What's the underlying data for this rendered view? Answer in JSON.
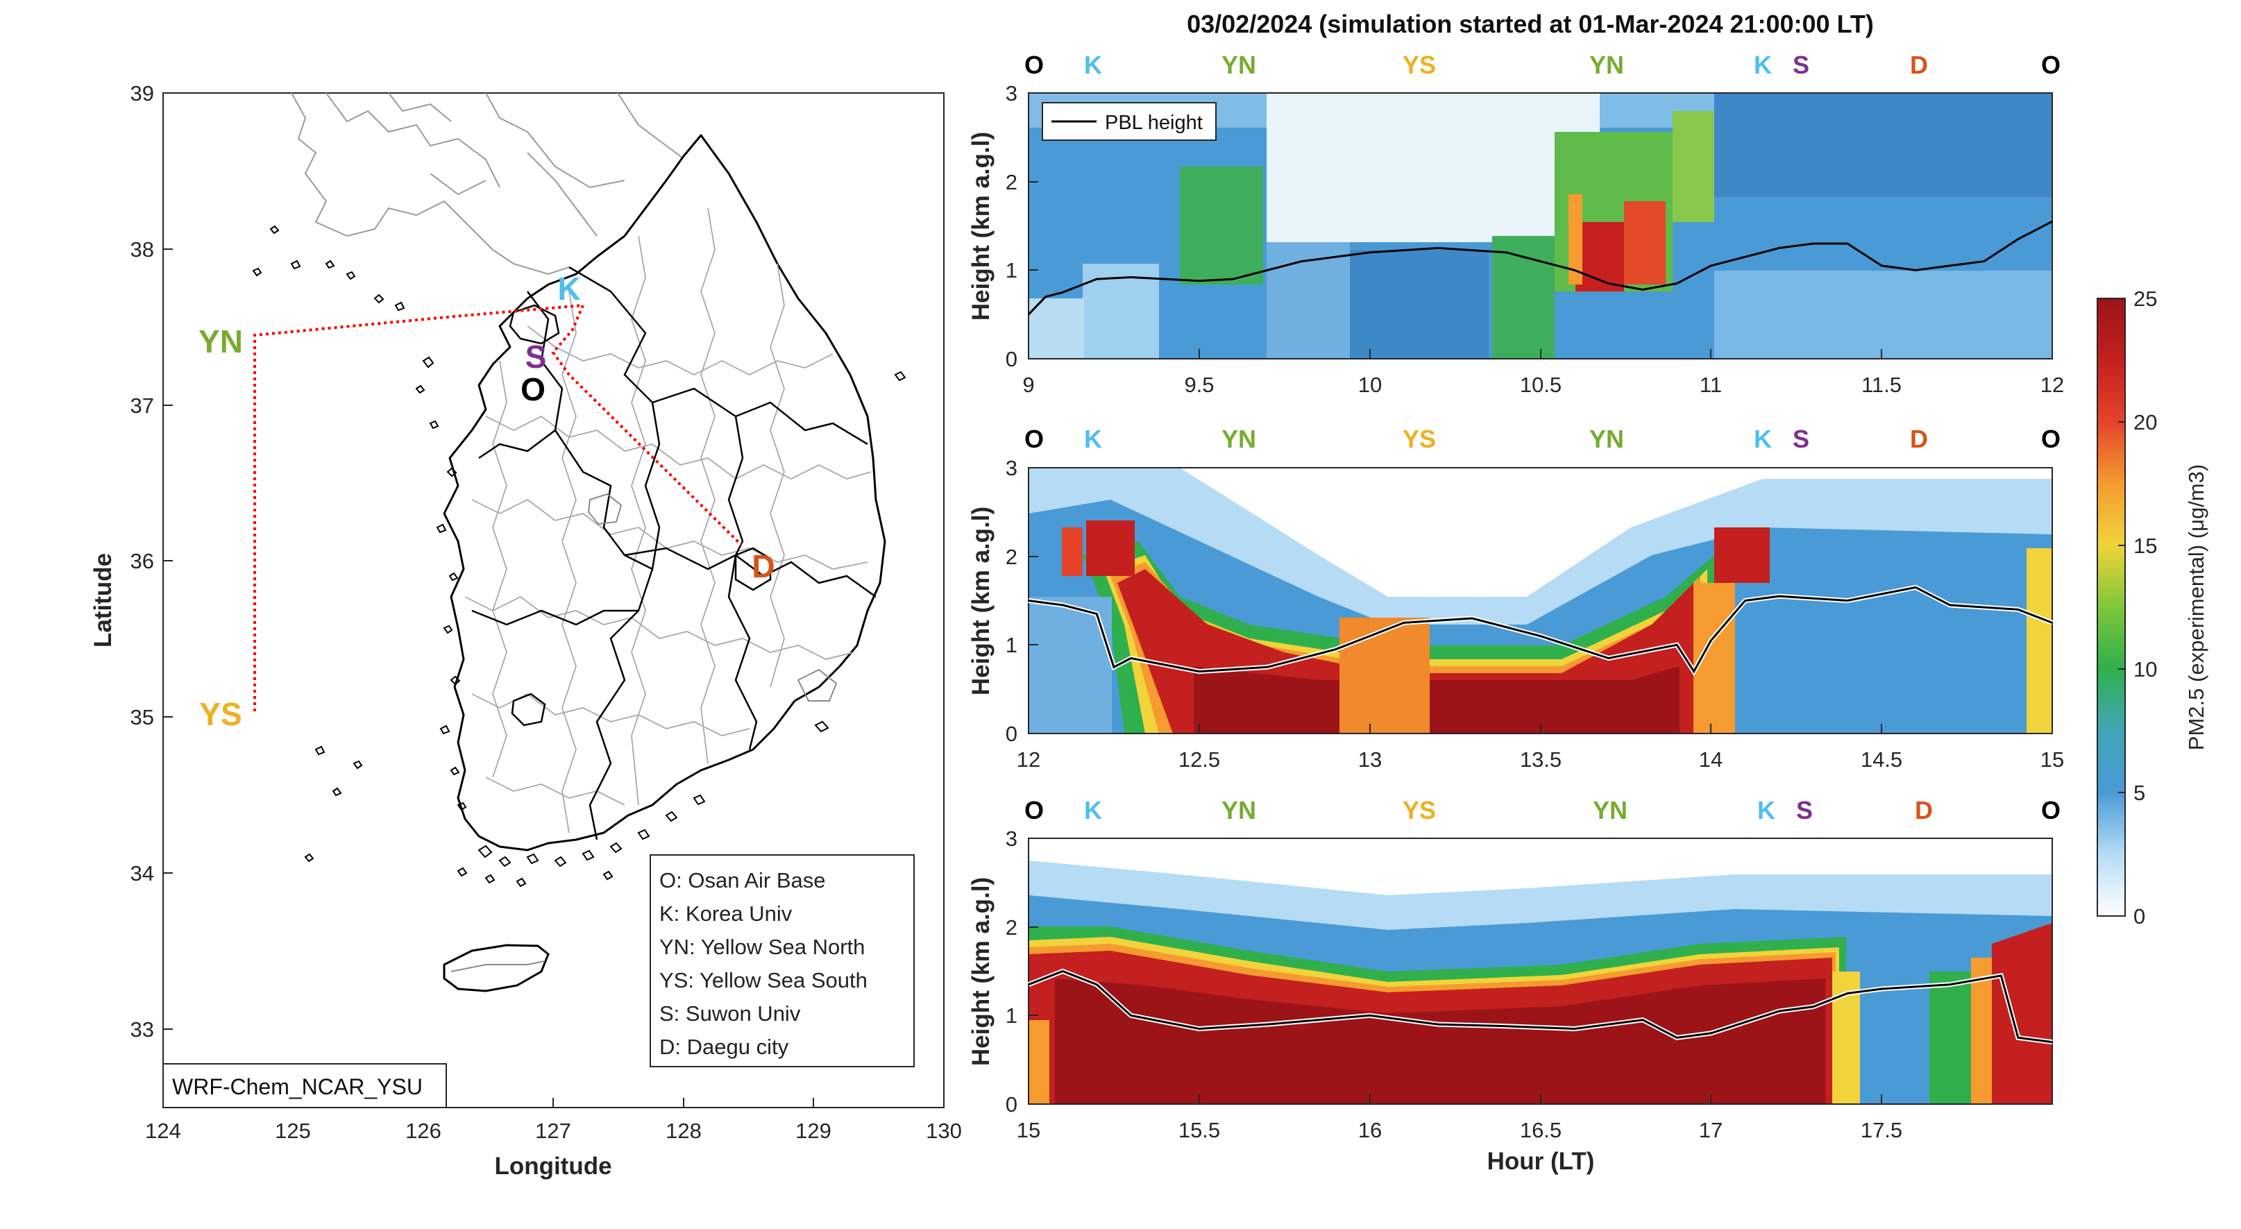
{
  "figure": {
    "title": "03/02/2024 (simulation started at 01-Mar-2024 21:00:00 LT)"
  },
  "map": {
    "xlabel": "Longitude",
    "ylabel": "Latitude",
    "xlim": [
      124,
      130
    ],
    "ylim": [
      32.5,
      39
    ],
    "xticks": [
      "124",
      "125",
      "126",
      "127",
      "128",
      "129",
      "130"
    ],
    "yticks": [
      "33",
      "34",
      "35",
      "36",
      "37",
      "38",
      "39"
    ],
    "model_label": "WRF-Chem_NCAR_YSU",
    "sites": [
      {
        "code": "O",
        "lon": 126.96,
        "lat": 37.1,
        "color": "#000000"
      },
      {
        "code": "K",
        "lon": 127.18,
        "lat": 37.64,
        "color": "#4DBEEE"
      },
      {
        "code": "YN",
        "lon": 124.75,
        "lat": 37.45,
        "color": "#77AC30"
      },
      {
        "code": "YS",
        "lon": 124.75,
        "lat": 35.05,
        "color": "#EDB120"
      },
      {
        "code": "S",
        "lon": 127.02,
        "lat": 37.3,
        "color": "#7E2F8E"
      },
      {
        "code": "D",
        "lon": 128.55,
        "lat": 36.06,
        "color": "#D95319"
      }
    ],
    "track_color": "#ff0000",
    "legend": [
      "O: Osan Air Base",
      "K: Korea Univ",
      "YN: Yellow Sea North",
      "YS: Yellow Sea South",
      "S: Suwon Univ",
      "D: Daegu city"
    ]
  },
  "chart_data": [
    {
      "type": "heatmap",
      "panel": 1,
      "xlim": [
        9,
        12
      ],
      "ylim": [
        0,
        3
      ],
      "xticks": [
        "9",
        "9.5",
        "10",
        "10.5",
        "11",
        "11.5",
        "12"
      ],
      "yticks": [
        "0",
        "1",
        "2",
        "3"
      ],
      "ylabel": "Height (km a.g.l)",
      "xlabel": "",
      "legend": [
        "PBL height"
      ],
      "site_labels": [
        "O",
        "K",
        "YN",
        "YS",
        "YN",
        "K",
        "S",
        "D",
        "O"
      ],
      "pbl_x": [
        9,
        9.05,
        9.1,
        9.2,
        9.3,
        9.5,
        9.6,
        9.8,
        10.0,
        10.2,
        10.4,
        10.6,
        10.7,
        10.8,
        10.9,
        11.0,
        11.1,
        11.2,
        11.3,
        11.4,
        11.5,
        11.6,
        11.7,
        11.8,
        11.9,
        12.0
      ],
      "pbl_y": [
        0.5,
        0.7,
        0.75,
        0.9,
        0.92,
        0.88,
        0.9,
        1.1,
        1.2,
        1.25,
        1.2,
        1.0,
        0.85,
        0.78,
        0.85,
        1.05,
        1.15,
        1.25,
        1.3,
        1.3,
        1.05,
        1.0,
        1.05,
        1.1,
        1.35,
        1.55
      ]
    },
    {
      "type": "heatmap",
      "panel": 2,
      "xlim": [
        12,
        15
      ],
      "ylim": [
        0,
        3
      ],
      "xticks": [
        "12",
        "12.5",
        "13",
        "13.5",
        "14",
        "14.5",
        "15"
      ],
      "yticks": [
        "0",
        "1",
        "2",
        "3"
      ],
      "ylabel": "Height (km a.g.l)",
      "xlabel": "",
      "site_labels": [
        "O",
        "K",
        "YN",
        "YS",
        "YN",
        "K",
        "S",
        "D",
        "O"
      ],
      "pbl_x": [
        12.0,
        12.1,
        12.2,
        12.25,
        12.3,
        12.5,
        12.7,
        12.9,
        13.0,
        13.1,
        13.3,
        13.5,
        13.7,
        13.9,
        13.95,
        14.0,
        14.1,
        14.2,
        14.4,
        14.6,
        14.7,
        14.9,
        15.0
      ],
      "pbl_y": [
        1.5,
        1.45,
        1.35,
        0.75,
        0.85,
        0.7,
        0.75,
        0.95,
        1.1,
        1.25,
        1.3,
        1.1,
        0.85,
        1.0,
        0.7,
        1.05,
        1.5,
        1.55,
        1.5,
        1.65,
        1.45,
        1.4,
        1.25
      ]
    },
    {
      "type": "heatmap",
      "panel": 3,
      "xlim": [
        15,
        18
      ],
      "ylim": [
        0,
        3
      ],
      "xticks": [
        "15",
        "15.5",
        "16",
        "16.5",
        "17",
        "17.5"
      ],
      "yticks": [
        "0",
        "1",
        "2",
        "3"
      ],
      "ylabel": "Height (km a.g.l)",
      "xlabel": "Hour (LT)",
      "site_labels": [
        "O",
        "K",
        "YN",
        "YS",
        "YN",
        "K",
        "S",
        "D",
        "O"
      ],
      "pbl_x": [
        15.0,
        15.1,
        15.2,
        15.3,
        15.5,
        15.7,
        16.0,
        16.2,
        16.4,
        16.6,
        16.8,
        16.9,
        17.0,
        17.2,
        17.3,
        17.4,
        17.5,
        17.7,
        17.85,
        17.9,
        18.0
      ],
      "pbl_y": [
        1.35,
        1.5,
        1.35,
        1.0,
        0.85,
        0.9,
        1.0,
        0.9,
        0.88,
        0.85,
        0.95,
        0.75,
        0.8,
        1.05,
        1.1,
        1.25,
        1.3,
        1.35,
        1.45,
        0.75,
        0.7
      ]
    }
  ],
  "colorbar": {
    "label": "PM2.5 (experimental) (μg/m3)",
    "ticks": [
      "0",
      "5",
      "10",
      "15",
      "20",
      "25"
    ],
    "range": [
      0,
      25
    ]
  }
}
